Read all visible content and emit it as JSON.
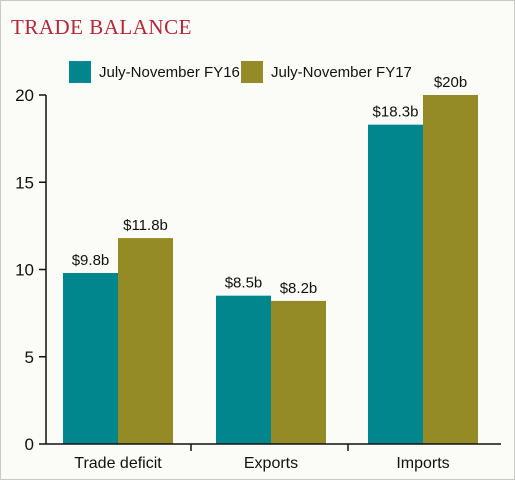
{
  "title": "TRADE BALANCE",
  "colors": {
    "title": "#b5263a",
    "series_fy16": "#00868c",
    "series_fy17": "#958b26",
    "axis": "#111111"
  },
  "legend": [
    {
      "label": "July-November FY16",
      "color": "#00868c"
    },
    {
      "label": "July-November FY17",
      "color": "#958b26"
    }
  ],
  "chart_data": {
    "type": "bar",
    "title": "TRADE BALANCE",
    "categories": [
      "Trade deficit",
      "Exports",
      "Imports"
    ],
    "series": [
      {
        "name": "July-November FY16",
        "values": [
          9.8,
          8.5,
          18.3
        ],
        "labels": [
          "$9.8b",
          "$8.5b",
          "$18.3b"
        ],
        "color": "#00868c"
      },
      {
        "name": "July-November FY17",
        "values": [
          11.8,
          8.2,
          20
        ],
        "labels": [
          "$11.8b",
          "$8.2b",
          "$20b"
        ],
        "color": "#958b26"
      }
    ],
    "ylim": [
      0,
      20
    ],
    "yticks": [
      0,
      5,
      10,
      15,
      20
    ],
    "xlabel": "",
    "ylabel": "",
    "grid": false,
    "legend_position": "top"
  }
}
